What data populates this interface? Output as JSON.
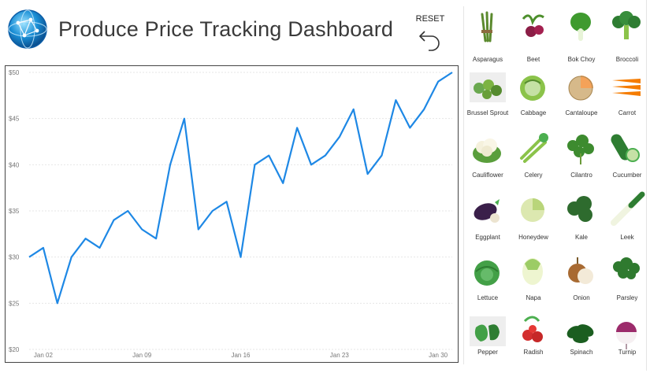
{
  "header": {
    "title": "Produce Price Tracking Dashboard",
    "logo_icon": "globe-network-icon",
    "reset_label": "RESET",
    "reset_icon": "undo-arrow-icon"
  },
  "chart_data": {
    "type": "line",
    "title": "",
    "xlabel": "",
    "ylabel": "",
    "x": [
      "Jan 01",
      "Jan 02",
      "Jan 03",
      "Jan 04",
      "Jan 05",
      "Jan 06",
      "Jan 07",
      "Jan 08",
      "Jan 09",
      "Jan 10",
      "Jan 11",
      "Jan 12",
      "Jan 13",
      "Jan 14",
      "Jan 15",
      "Jan 16",
      "Jan 17",
      "Jan 18",
      "Jan 19",
      "Jan 20",
      "Jan 21",
      "Jan 22",
      "Jan 23",
      "Jan 24",
      "Jan 25",
      "Jan 26",
      "Jan 27",
      "Jan 28",
      "Jan 29",
      "Jan 30",
      "Jan 31"
    ],
    "series": [
      {
        "values": [
          30,
          31,
          25,
          30,
          32,
          31,
          34,
          35,
          33,
          32,
          40,
          45,
          33,
          35,
          36,
          30,
          40,
          41,
          38,
          44,
          40,
          41,
          43,
          46,
          39,
          41,
          47,
          44,
          46,
          49,
          50
        ]
      }
    ],
    "x_ticks": [
      "Jan 02",
      "Jan 09",
      "Jan 16",
      "Jan 23",
      "Jan 30"
    ],
    "y_ticks": [
      "$20",
      "$25",
      "$30",
      "$35",
      "$40",
      "$45",
      "$50"
    ],
    "ylim": [
      20,
      50
    ],
    "grid": true,
    "line_color": "#1E88E5"
  },
  "vegetables": [
    {
      "label": "Asparagus",
      "icon": "asparagus-icon"
    },
    {
      "label": "Beet",
      "icon": "beet-icon"
    },
    {
      "label": "Bok Choy",
      "icon": "bok-choy-icon"
    },
    {
      "label": "Broccoli",
      "icon": "broccoli-icon"
    },
    {
      "label": "Brussel Sprout",
      "icon": "brussel-sprout-icon"
    },
    {
      "label": "Cabbage",
      "icon": "cabbage-icon"
    },
    {
      "label": "Cantaloupe",
      "icon": "cantaloupe-icon"
    },
    {
      "label": "Carrot",
      "icon": "carrot-icon"
    },
    {
      "label": "Cauliflower",
      "icon": "cauliflower-icon"
    },
    {
      "label": "Celery",
      "icon": "celery-icon"
    },
    {
      "label": "Cilantro",
      "icon": "cilantro-icon"
    },
    {
      "label": "Cucumber",
      "icon": "cucumber-icon"
    },
    {
      "label": "Eggplant",
      "icon": "eggplant-icon"
    },
    {
      "label": "Honeydew",
      "icon": "honeydew-icon"
    },
    {
      "label": "Kale",
      "icon": "kale-icon"
    },
    {
      "label": "Leek",
      "icon": "leek-icon"
    },
    {
      "label": "Lettuce",
      "icon": "lettuce-icon"
    },
    {
      "label": "Napa",
      "icon": "napa-icon"
    },
    {
      "label": "Onion",
      "icon": "onion-icon"
    },
    {
      "label": "Parsley",
      "icon": "parsley-icon"
    },
    {
      "label": "Pepper",
      "icon": "pepper-icon"
    },
    {
      "label": "Radish",
      "icon": "radish-icon"
    },
    {
      "label": "Spinach",
      "icon": "spinach-icon"
    },
    {
      "label": "Turnip",
      "icon": "turnip-icon"
    }
  ]
}
